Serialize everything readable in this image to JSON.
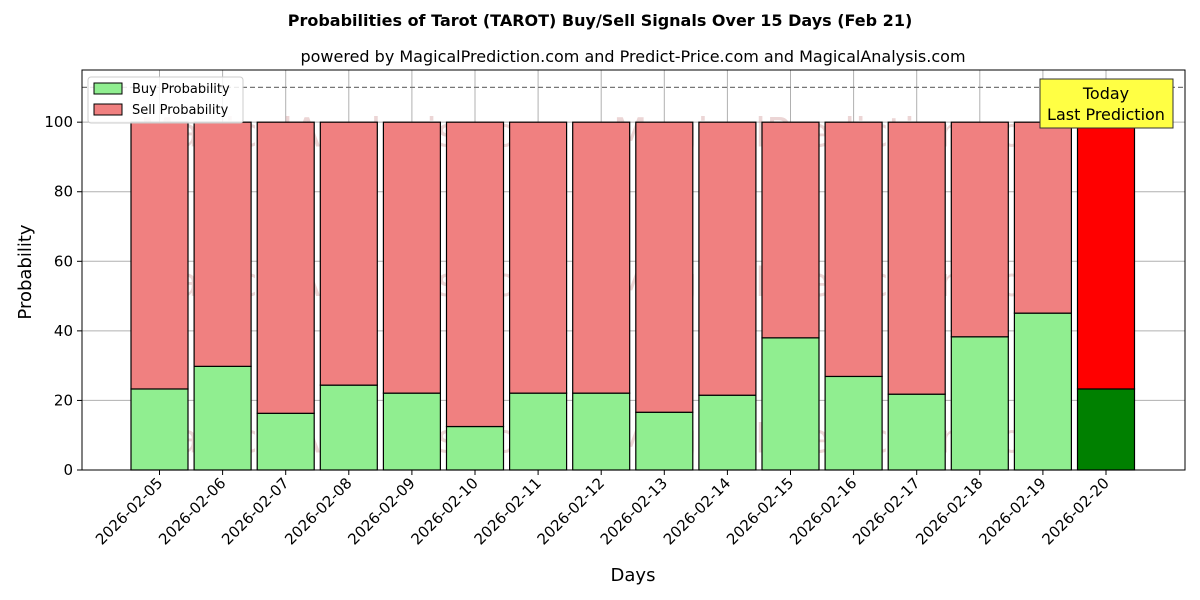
{
  "chart_data": {
    "type": "bar",
    "stacked": true,
    "title": "Probabilities of Tarot (TAROT) Buy/Sell Signals Over 15 Days (Feb 21)",
    "subtitle": "powered by MagicalPrediction.com and Predict-Price.com and MagicalAnalysis.com",
    "xlabel": "Days",
    "ylabel": "Probability",
    "ylim": [
      0,
      115
    ],
    "yticks": [
      0,
      20,
      40,
      60,
      80,
      100
    ],
    "grid": true,
    "legend_position": "top-left",
    "reference_line": 110,
    "categories": [
      "2026-02-05",
      "2026-02-06",
      "2026-02-07",
      "2026-02-08",
      "2026-02-09",
      "2026-02-10",
      "2026-02-11",
      "2026-02-12",
      "2026-02-13",
      "2026-02-14",
      "2026-02-15",
      "2026-02-16",
      "2026-02-17",
      "2026-02-18",
      "2026-02-19",
      "2026-02-20"
    ],
    "series": [
      {
        "name": "Buy Probability",
        "color": "#90ee90",
        "values": [
          23.3,
          29.8,
          16.3,
          24.4,
          22.1,
          12.5,
          22.1,
          22.1,
          16.6,
          21.5,
          38.0,
          26.9,
          21.8,
          38.3,
          45.1,
          23.3
        ]
      },
      {
        "name": "Sell Probability",
        "color": "#f08080",
        "values": [
          76.7,
          70.2,
          83.7,
          75.6,
          77.9,
          87.5,
          77.9,
          77.9,
          83.4,
          78.5,
          62.0,
          73.1,
          78.2,
          61.7,
          54.9,
          76.7
        ]
      }
    ],
    "highlight": {
      "index": 15,
      "buy_color": "#008000",
      "sell_color": "#ff0000"
    },
    "annotation": {
      "lines": [
        "Today",
        "Last Prediction"
      ],
      "background": "#ffff44"
    },
    "watermarks": [
      "MagicalAnalysis.com",
      "MagicalPrediction.com"
    ]
  }
}
